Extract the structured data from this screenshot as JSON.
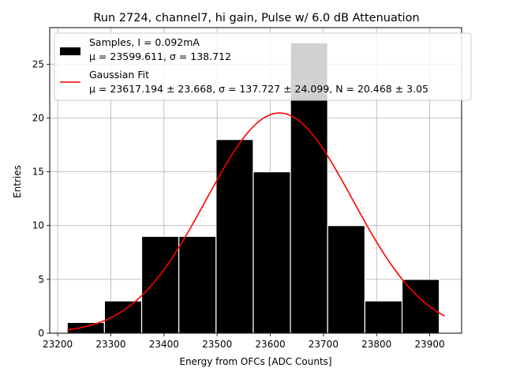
{
  "chart_data": {
    "type": "bar",
    "title": "Run 2724, channel7, hi gain, Pulse w/ 6.0 dB Attenuation",
    "xlabel": "Energy from OFCs [ADC Counts]",
    "ylabel": "Entries",
    "xlim": [
      23185,
      23960
    ],
    "ylim": [
      0,
      28.4
    ],
    "xticks": [
      23200,
      23300,
      23400,
      23500,
      23600,
      23700,
      23800,
      23900
    ],
    "yticks": [
      0,
      5,
      10,
      15,
      20,
      25
    ],
    "grid": true,
    "legend_position": "top",
    "bins": [
      {
        "x0": 23218,
        "x1": 23288,
        "count": 1
      },
      {
        "x0": 23288,
        "x1": 23358,
        "count": 3
      },
      {
        "x0": 23358,
        "x1": 23428,
        "count": 9
      },
      {
        "x0": 23428,
        "x1": 23498,
        "count": 9
      },
      {
        "x0": 23498,
        "x1": 23568,
        "count": 18
      },
      {
        "x0": 23568,
        "x1": 23638,
        "count": 15
      },
      {
        "x0": 23638,
        "x1": 23708,
        "count": 27
      },
      {
        "x0": 23708,
        "x1": 23778,
        "count": 10
      },
      {
        "x0": 23778,
        "x1": 23848,
        "count": 3
      },
      {
        "x0": 23848,
        "x1": 23918,
        "count": 5
      }
    ],
    "fit": {
      "mu": 23617.194,
      "sigma": 137.727,
      "N": 20.468,
      "x_range": [
        23218,
        23928
      ]
    },
    "series": [
      {
        "name": "Samples, I = 0.092mA",
        "stats": "μ = 23599.611, σ = 138.712",
        "color": "#000000"
      },
      {
        "name": "Gaussian Fit",
        "stats": "μ = 23617.194 ± 23.668, σ = 137.727 ± 24.099, N = 20.468 ± 3.05",
        "color": "#ff0000"
      }
    ]
  }
}
